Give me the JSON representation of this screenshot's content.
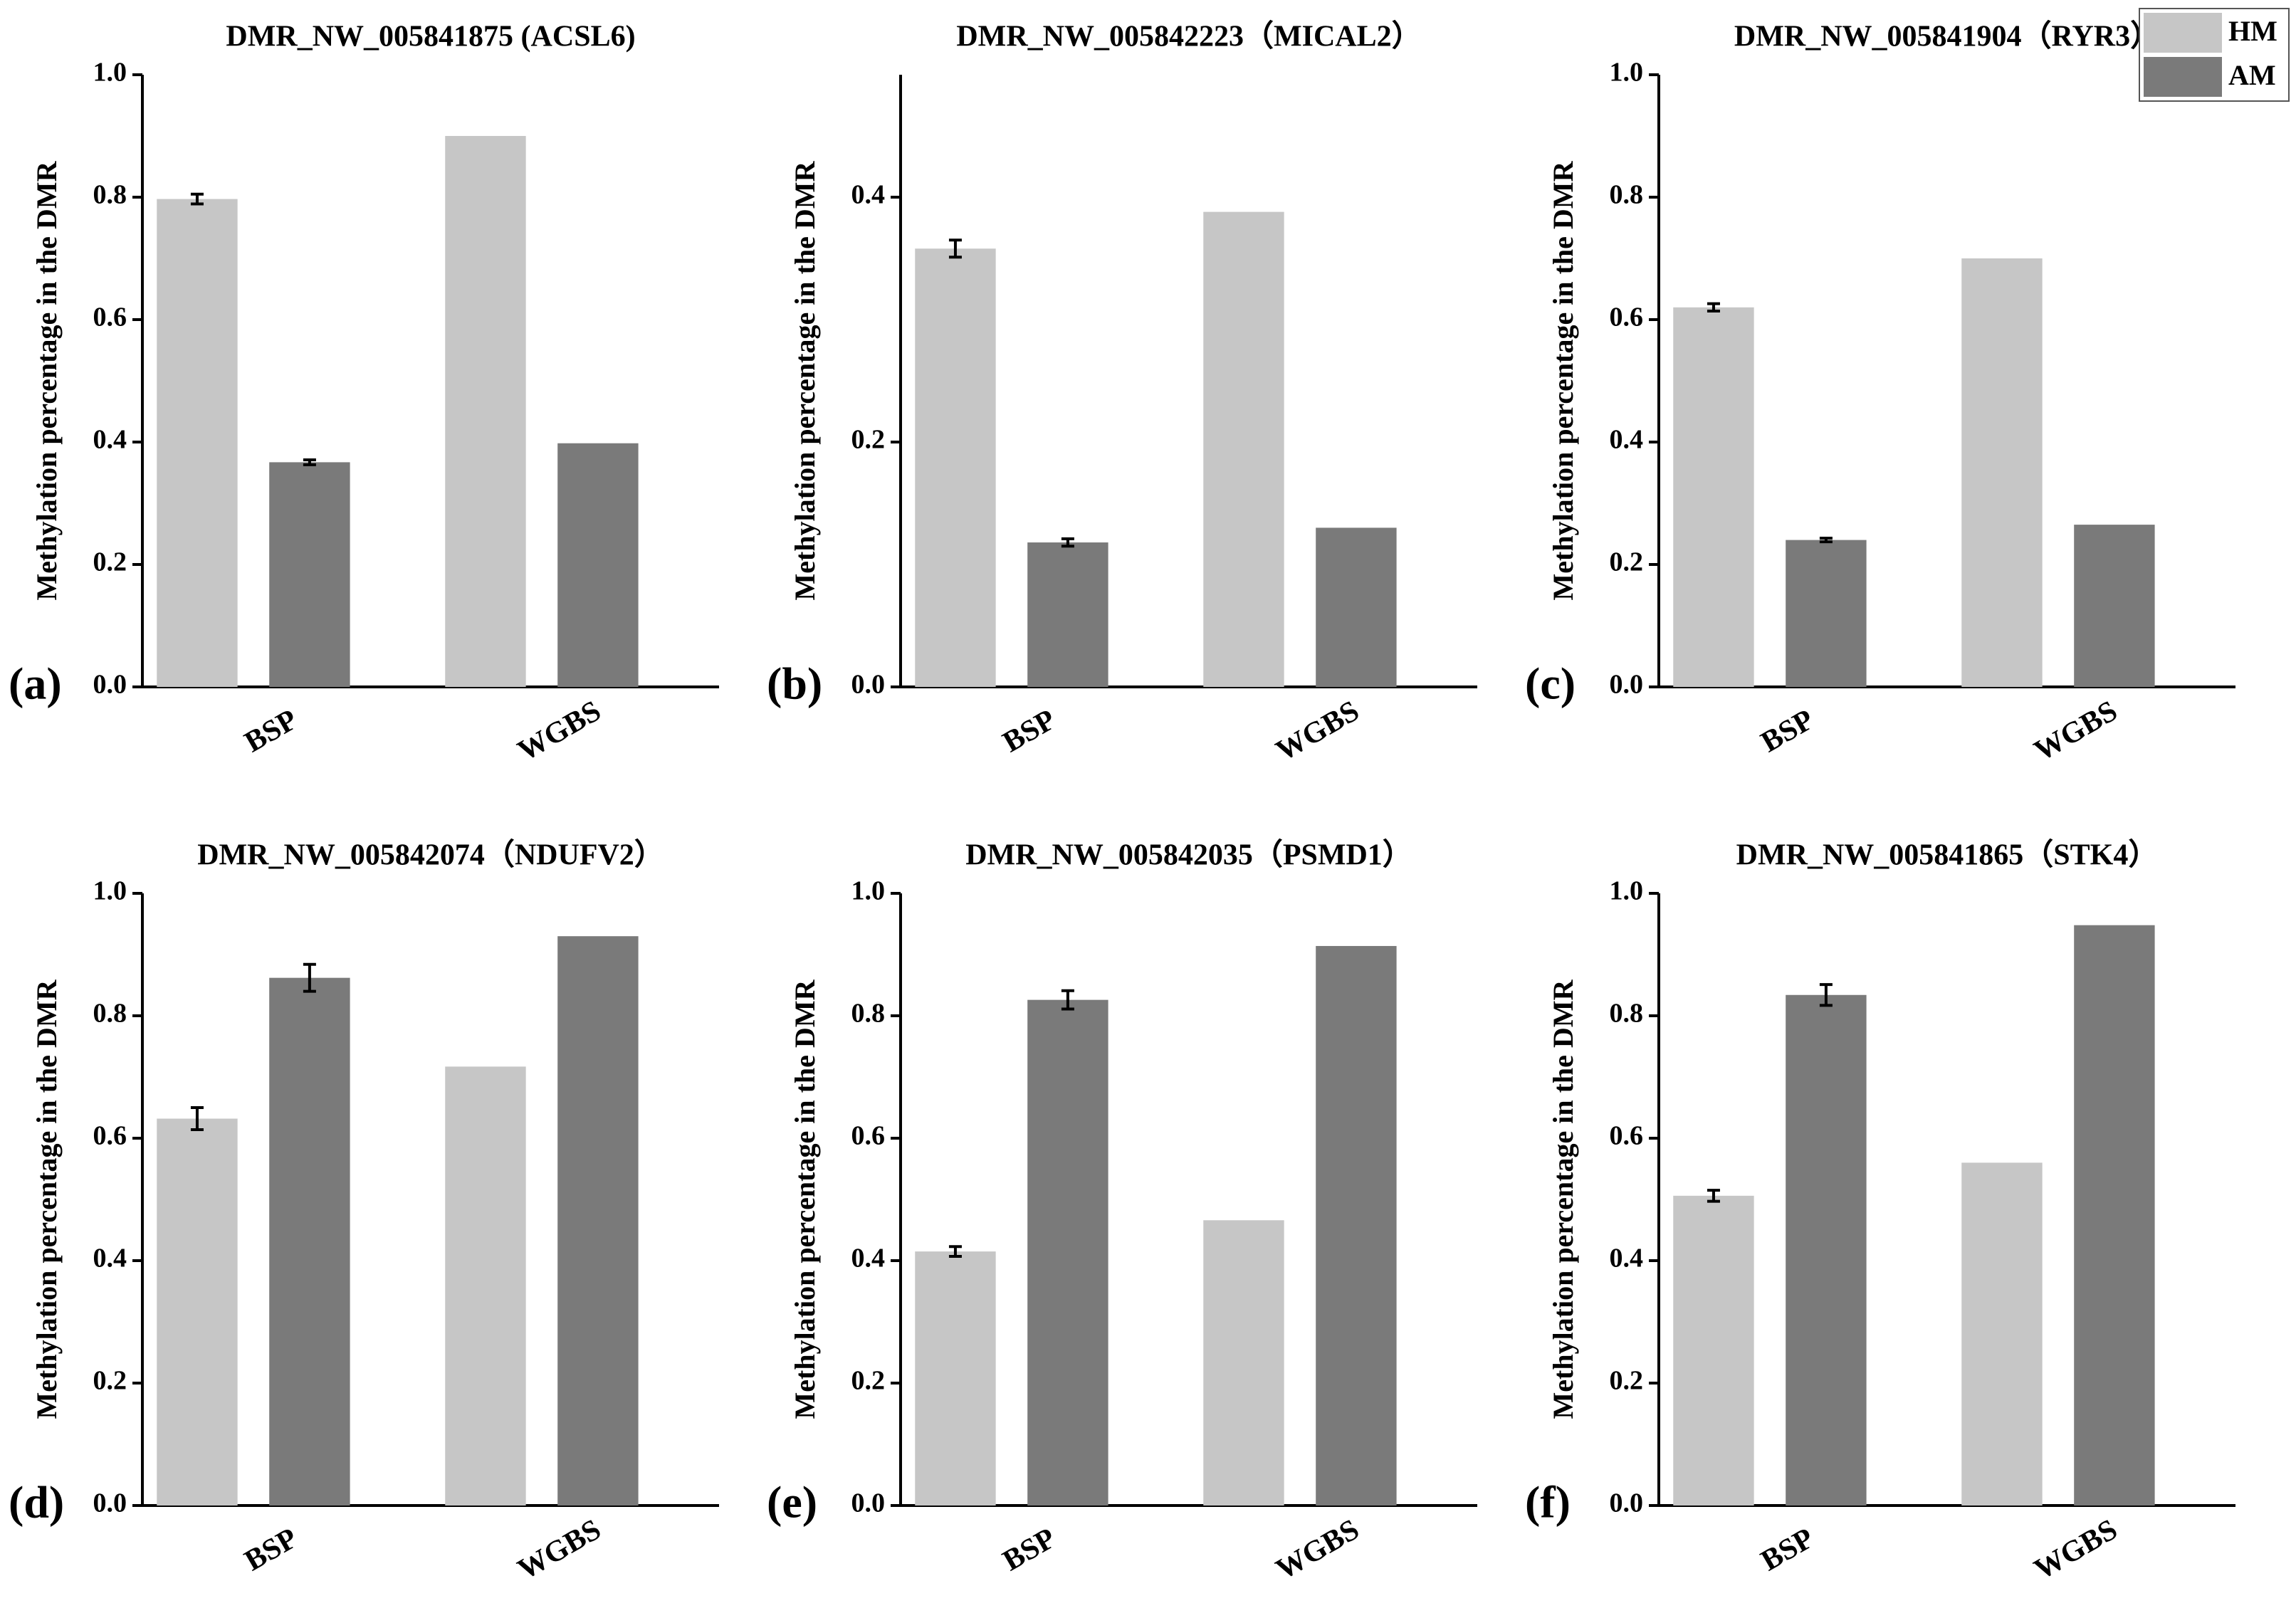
{
  "chart_data": [
    {
      "type": "bar",
      "title": "DMR_NW_005841875 (ACSL6)",
      "panel_label": "(a)",
      "y_label": "Methylation percentage in the DMR",
      "categories": [
        "BSP",
        "WGBS"
      ],
      "series": [
        {
          "name": "HM",
          "color": "#c6c6c6",
          "values": [
            0.797,
            0.9
          ],
          "errors": [
            0.008,
            null
          ]
        },
        {
          "name": "AM",
          "color": "#7a7a7a",
          "values": [
            0.367,
            0.398
          ],
          "errors": [
            0.004,
            null
          ]
        }
      ],
      "ylim": [
        0,
        1
      ],
      "yticks": [
        {
          "value": 0,
          "label": "0.0"
        },
        0.2,
        0.4,
        0.6,
        0.8,
        {
          "value": 1,
          "label": "1.0"
        }
      ],
      "grid": false
    },
    {
      "type": "bar",
      "title": "DMR_NW_005842223（MICAL2）",
      "panel_label": "(b)",
      "y_label": "Methylation percentage in the DMR",
      "categories": [
        "BSP",
        "WGBS"
      ],
      "series": [
        {
          "name": "HM",
          "color": "#c6c6c6",
          "values": [
            0.358,
            0.388
          ],
          "errors": [
            0.007,
            null
          ]
        },
        {
          "name": "AM",
          "color": "#7a7a7a",
          "values": [
            0.118,
            0.13
          ],
          "errors": [
            0.003,
            null
          ]
        }
      ],
      "ylim": [
        0,
        0.5
      ],
      "yticks": [
        {
          "value": 0,
          "label": "0.0"
        },
        0.2,
        0.4
      ],
      "grid": false
    },
    {
      "type": "bar",
      "title": "DMR_NW_005841904（RYR3）",
      "panel_label": "(c)",
      "y_label": "Methylation percentage in the DMR",
      "categories": [
        "BSP",
        "WGBS"
      ],
      "series": [
        {
          "name": "HM",
          "color": "#c6c6c6",
          "values": [
            0.62,
            0.7
          ],
          "errors": [
            0.006,
            null
          ]
        },
        {
          "name": "AM",
          "color": "#7a7a7a",
          "values": [
            0.24,
            0.265
          ],
          "errors": [
            0.003,
            null
          ]
        }
      ],
      "ylim": [
        0,
        1
      ],
      "yticks": [
        {
          "value": 0,
          "label": "0.0"
        },
        0.2,
        0.4,
        0.6,
        0.8,
        {
          "value": 1,
          "label": "1.0"
        }
      ],
      "grid": false
    },
    {
      "type": "bar",
      "title": "DMR_NW_005842074（NDUFV2）",
      "panel_label": "(d)",
      "y_label": "Methylation percentage in the DMR",
      "categories": [
        "BSP",
        "WGBS"
      ],
      "series": [
        {
          "name": "HM",
          "color": "#c6c6c6",
          "values": [
            0.632,
            0.717
          ],
          "errors": [
            0.018,
            null
          ]
        },
        {
          "name": "AM",
          "color": "#7a7a7a",
          "values": [
            0.862,
            0.93
          ],
          "errors": [
            0.022,
            null
          ]
        }
      ],
      "ylim": [
        0,
        1
      ],
      "yticks": [
        {
          "value": 0,
          "label": "0.0"
        },
        0.2,
        0.4,
        0.6,
        0.8,
        {
          "value": 1,
          "label": "1.0"
        }
      ],
      "grid": false
    },
    {
      "type": "bar",
      "title": "DMR_NW_005842035（PSMD1）",
      "panel_label": "(e)",
      "y_label": "Methylation percentage in the DMR",
      "categories": [
        "BSP",
        "WGBS"
      ],
      "series": [
        {
          "name": "HM",
          "color": "#c6c6c6",
          "values": [
            0.415,
            0.466
          ],
          "errors": [
            0.008,
            null
          ]
        },
        {
          "name": "AM",
          "color": "#7a7a7a",
          "values": [
            0.826,
            0.914
          ],
          "errors": [
            0.015,
            null
          ]
        }
      ],
      "ylim": [
        0,
        1
      ],
      "yticks": [
        {
          "value": 0,
          "label": "0.0"
        },
        0.2,
        0.4,
        0.6,
        0.8,
        {
          "value": 1,
          "label": "1.0"
        }
      ],
      "grid": false
    },
    {
      "type": "bar",
      "title": "DMR_NW_005841865（STK4）",
      "panel_label": "(f)",
      "y_label": "Methylation percentage in the DMR",
      "categories": [
        "BSP",
        "WGBS"
      ],
      "series": [
        {
          "name": "HM",
          "color": "#c6c6c6",
          "values": [
            0.506,
            0.56
          ],
          "errors": [
            0.009,
            null
          ]
        },
        {
          "name": "AM",
          "color": "#7a7a7a",
          "values": [
            0.834,
            0.948
          ],
          "errors": [
            0.017,
            null
          ]
        }
      ],
      "ylim": [
        0,
        1
      ],
      "yticks": [
        {
          "value": 0,
          "label": "0.0"
        },
        0.2,
        0.4,
        0.6,
        0.8,
        {
          "value": 1,
          "label": "1.0"
        }
      ],
      "grid": false
    }
  ]
}
